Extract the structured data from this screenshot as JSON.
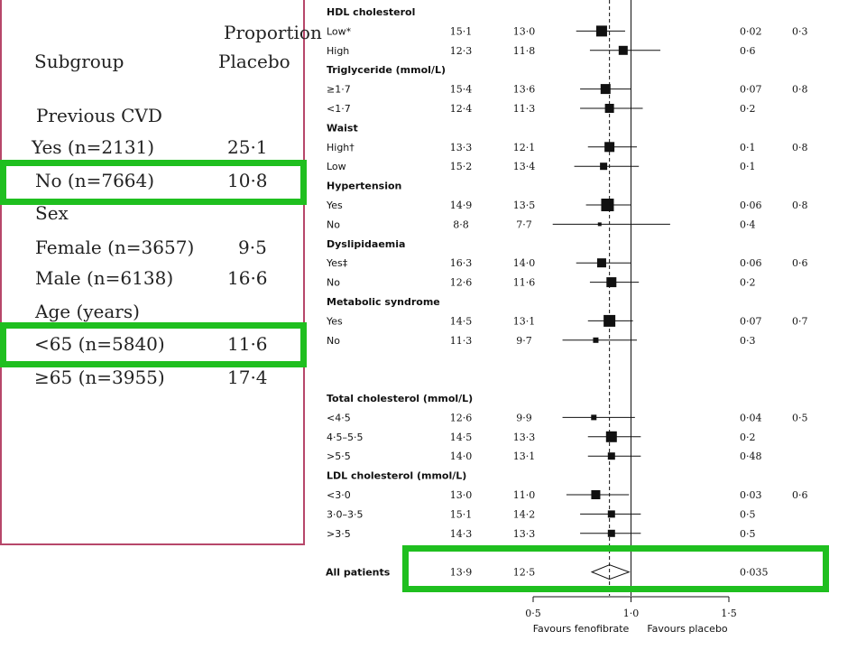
{
  "left_table": {
    "header_subgroup": "Subgroup",
    "header_proportion": "Proportion",
    "header_placebo": "Placebo",
    "rows": [
      {
        "label": "Previous CVD",
        "value": "",
        "kind": "group"
      },
      {
        "label": "Yes (n=2131)",
        "value": "25·1",
        "kind": "row"
      },
      {
        "label": "No (n=7664)",
        "value": "10·8",
        "kind": "row"
      },
      {
        "label": "Sex",
        "value": "",
        "kind": "group"
      },
      {
        "label": "Female (n=3657)",
        "value": "9·5",
        "kind": "row"
      },
      {
        "label": "Male (n=6138)",
        "value": "16·6",
        "kind": "row"
      },
      {
        "label": "Age (years)",
        "value": "",
        "kind": "group"
      },
      {
        "label": "<65 (n=5840)",
        "value": "11·6",
        "kind": "row"
      },
      {
        "label": "≥65 (n=3955)",
        "value": "17·4",
        "kind": "row"
      }
    ]
  },
  "forest": {
    "rows": [
      {
        "label": "HDL cholesterol",
        "kind": "group"
      },
      {
        "label": "Low*",
        "placebo": "15·1",
        "feno": "13·0",
        "hr": 0.85,
        "lo": 0.72,
        "hi": 0.97,
        "size": 12,
        "p": "0·02",
        "pint": "0·3"
      },
      {
        "label": "High",
        "placebo": "12·3",
        "feno": "11·8",
        "hr": 0.96,
        "lo": 0.79,
        "hi": 1.15,
        "size": 10,
        "p": "0·6",
        "pint": ""
      },
      {
        "label": "Triglyceride (mmol/L)",
        "kind": "group"
      },
      {
        "label": "≥1·7",
        "placebo": "15·4",
        "feno": "13·6",
        "hr": 0.87,
        "lo": 0.74,
        "hi": 1.0,
        "size": 11,
        "p": "0·07",
        "pint": "0·8"
      },
      {
        "label": "<1·7",
        "placebo": "12·4",
        "feno": "11·3",
        "hr": 0.89,
        "lo": 0.74,
        "hi": 1.06,
        "size": 10,
        "p": "0·2",
        "pint": ""
      },
      {
        "label": "Waist",
        "kind": "group"
      },
      {
        "label": "High†",
        "placebo": "13·3",
        "feno": "12·1",
        "hr": 0.89,
        "lo": 0.78,
        "hi": 1.03,
        "size": 11,
        "p": "0·1",
        "pint": "0·8"
      },
      {
        "label": "Low",
        "placebo": "15·2",
        "feno": "13·4",
        "hr": 0.86,
        "lo": 0.71,
        "hi": 1.04,
        "size": 8,
        "p": "0·1",
        "pint": ""
      },
      {
        "label": "Hypertension",
        "kind": "group"
      },
      {
        "label": "Yes",
        "placebo": "14·9",
        "feno": "13·5",
        "hr": 0.88,
        "lo": 0.77,
        "hi": 1.0,
        "size": 14,
        "p": "0·06",
        "pint": "0·8"
      },
      {
        "label": "No",
        "placebo": "8·8",
        "feno": "7·7",
        "hr": 0.84,
        "lo": 0.6,
        "hi": 1.2,
        "size": 4,
        "p": "0·4",
        "pint": ""
      },
      {
        "label": "Dyslipidaemia",
        "kind": "group"
      },
      {
        "label": "Yes‡",
        "placebo": "16·3",
        "feno": "14·0",
        "hr": 0.85,
        "lo": 0.72,
        "hi": 1.0,
        "size": 10,
        "p": "0·06",
        "pint": "0·6"
      },
      {
        "label": "No",
        "placebo": "12·6",
        "feno": "11·6",
        "hr": 0.9,
        "lo": 0.79,
        "hi": 1.04,
        "size": 11,
        "p": "0·2",
        "pint": ""
      },
      {
        "label": "Metabolic syndrome",
        "kind": "group"
      },
      {
        "label": "Yes",
        "placebo": "14·5",
        "feno": "13·1",
        "hr": 0.89,
        "lo": 0.78,
        "hi": 1.01,
        "size": 13,
        "p": "0·07",
        "pint": "0·7"
      },
      {
        "label": "No",
        "placebo": "11·3",
        "feno": "9·7",
        "hr": 0.82,
        "lo": 0.65,
        "hi": 1.03,
        "size": 6,
        "p": "0·3",
        "pint": ""
      },
      {
        "label": "",
        "kind": "spacer"
      },
      {
        "label": "",
        "kind": "spacer"
      },
      {
        "label": "Total cholesterol (mmol/L)",
        "kind": "group"
      },
      {
        "label": "<4·5",
        "placebo": "12·6",
        "feno": "9·9",
        "hr": 0.81,
        "lo": 0.65,
        "hi": 1.02,
        "size": 6,
        "p": "0·04",
        "pint": "0·5"
      },
      {
        "label": "4·5–5·5",
        "placebo": "14·5",
        "feno": "13·3",
        "hr": 0.9,
        "lo": 0.78,
        "hi": 1.05,
        "size": 12,
        "p": "0·2",
        "pint": ""
      },
      {
        "label": ">5·5",
        "placebo": "14·0",
        "feno": "13·1",
        "hr": 0.9,
        "lo": 0.78,
        "hi": 1.05,
        "size": 8,
        "p": "0·48",
        "pint": ""
      },
      {
        "label": "LDL cholesterol (mmol/L)",
        "kind": "group"
      },
      {
        "label": "<3·0",
        "placebo": "13·0",
        "feno": "11·0",
        "hr": 0.82,
        "lo": 0.67,
        "hi": 0.99,
        "size": 10,
        "p": "0·03",
        "pint": "0·6"
      },
      {
        "label": "3·0–3·5",
        "placebo": "15·1",
        "feno": "14·2",
        "hr": 0.9,
        "lo": 0.74,
        "hi": 1.05,
        "size": 8,
        "p": "0·5",
        "pint": ""
      },
      {
        "label": ">3·5",
        "placebo": "14·3",
        "feno": "13·3",
        "hr": 0.9,
        "lo": 0.74,
        "hi": 1.05,
        "size": 8,
        "p": "0·5",
        "pint": ""
      },
      {
        "label": "",
        "kind": "spacer"
      },
      {
        "label": "All patients",
        "placebo": "13·9",
        "feno": "12·5",
        "hr": 0.89,
        "lo": 0.8,
        "hi": 0.99,
        "size": 0,
        "p": "0·035",
        "pint": "",
        "kind": "overall"
      }
    ],
    "axis": {
      "min": 0.5,
      "max": 1.5,
      "ticks": [
        "0·5",
        "1·0",
        "1·5"
      ],
      "tick_values": [
        0.5,
        1.0,
        1.5
      ]
    },
    "favours_left": "Favours fenofibrate",
    "favours_right": "Favours placebo",
    "reference_dashed": 0.89,
    "highlight_color": "#1fbf1f",
    "frame_color": "#b7476a"
  }
}
